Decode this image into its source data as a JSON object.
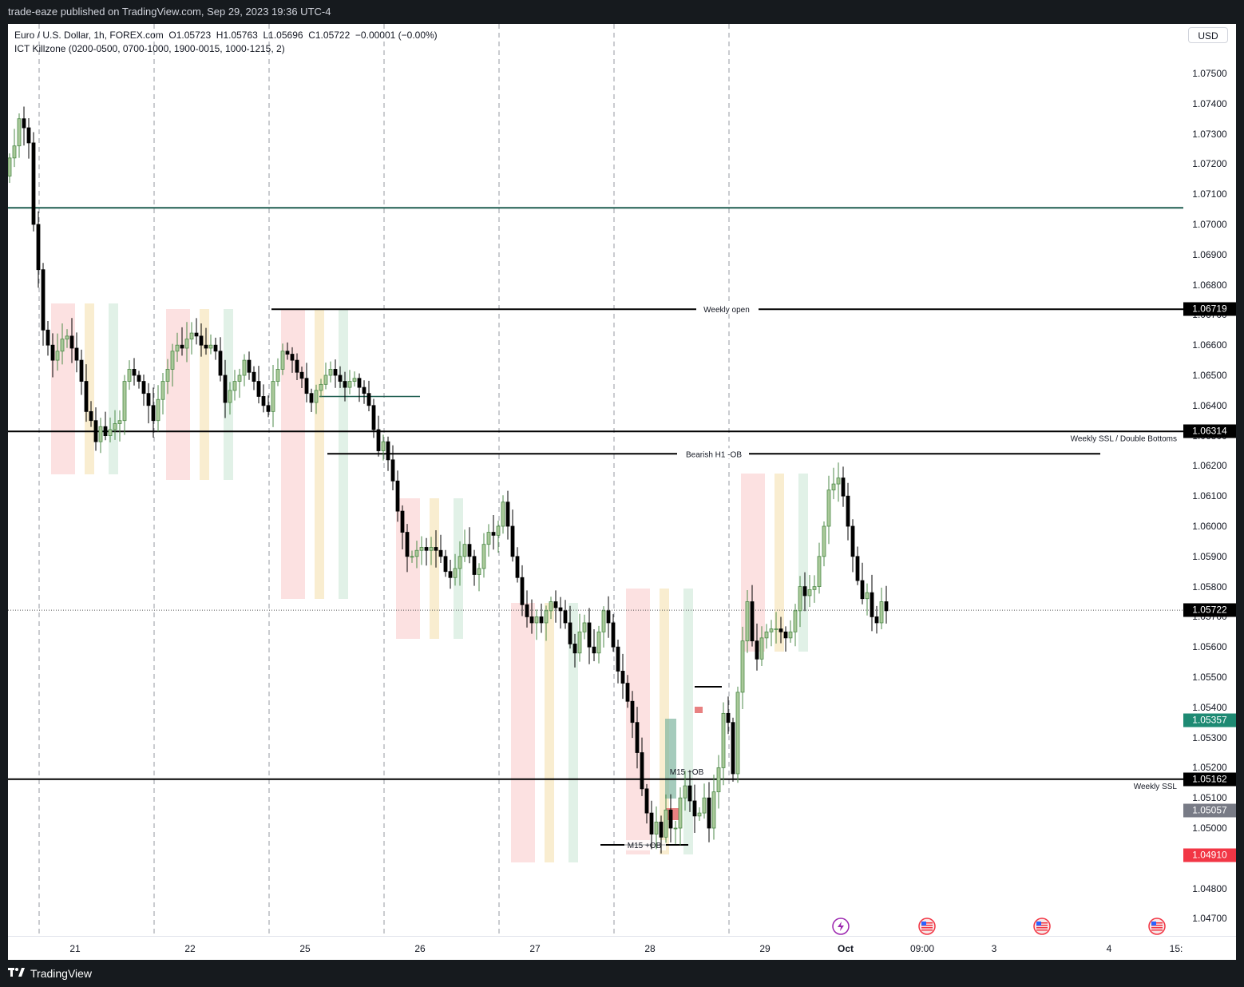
{
  "header": {
    "publisher": "trade-eaze published on TradingView.com, Sep 29, 2023 19:36 UTC-4"
  },
  "legend": {
    "symbol": "Euro / U.S. Dollar, 1h, FOREX.com",
    "ohlc": "O1.05723  H1.05763  L1.05696  C1.05722  −0.00001 (−0.00%)",
    "indicator": "ICT Killzone (0200-0500, 0700-1000, 1900-0015, 1000-1215, 2)"
  },
  "price_axis": {
    "currency": "USD",
    "ticks": [
      "1.07500",
      "1.07400",
      "1.07300",
      "1.07200",
      "1.07100",
      "1.07000",
      "1.06900",
      "1.06800",
      "1.06700",
      "1.06600",
      "1.06500",
      "1.06400",
      "1.06300",
      "1.06200",
      "1.06100",
      "1.06000",
      "1.05900",
      "1.05800",
      "1.05700",
      "1.05600",
      "1.05500",
      "1.05400",
      "1.05300",
      "1.05200",
      "1.05100",
      "1.05000",
      "1.04900",
      "1.04800",
      "1.04700"
    ],
    "labels": [
      {
        "text": "1.06719",
        "bg": "#000000",
        "fg": "#ffffff"
      },
      {
        "text": "1.06314",
        "bg": "#000000",
        "fg": "#ffffff"
      },
      {
        "text": "1.05722",
        "bg": "#000000",
        "fg": "#ffffff"
      },
      {
        "text": "1.05357",
        "bg": "#1e8a73",
        "fg": "#ffffff"
      },
      {
        "text": "1.05162",
        "bg": "#000000",
        "fg": "#ffffff"
      },
      {
        "text": "1.05057",
        "bg": "#787b86",
        "fg": "#ffffff"
      },
      {
        "text": "1.04910",
        "bg": "#f23645",
        "fg": "#ffffff"
      }
    ]
  },
  "time_axis": {
    "labels": [
      {
        "text": "21",
        "bold": false
      },
      {
        "text": "22",
        "bold": false
      },
      {
        "text": "25",
        "bold": false
      },
      {
        "text": "26",
        "bold": false
      },
      {
        "text": "27",
        "bold": false
      },
      {
        "text": "28",
        "bold": false
      },
      {
        "text": "29",
        "bold": false
      },
      {
        "text": "Oct",
        "bold": true
      },
      {
        "text": "09:00",
        "bold": false
      },
      {
        "text": "3",
        "bold": false
      },
      {
        "text": "4",
        "bold": false
      },
      {
        "text": "15:",
        "bold": false
      }
    ]
  },
  "annotations": {
    "weekly_open": "Weekly open",
    "weekly_ssl_double": "Weekly SSL / Double Bottoms",
    "bearish_ob": "Bearish H1 -OB",
    "m15_ob_top": "M15 +OB",
    "weekly_ssl": "Weekly SSL",
    "m15_ob_bottom": "M15 +OB"
  },
  "colors": {
    "up": "#4d8a48",
    "down": "#000000",
    "upfill": "#aac99a",
    "killzone_asia": "#f9c8c8",
    "killzone_london": "#f4deaa",
    "killzone_ny": "#c9e6d4",
    "teal_line": "#1e5e50"
  },
  "footer": {
    "brand": "TradingView"
  },
  "chart_data": {
    "type": "candlestick",
    "symbol": "EURUSD",
    "timeframe": "1h",
    "ylim": [
      1.0462,
      1.0768
    ],
    "levels": [
      {
        "name": "Weekly open",
        "value": 1.06719
      },
      {
        "name": "Weekly SSL / Double Bottoms",
        "value": 1.06314
      },
      {
        "name": "Bearish H1 -OB",
        "value": 1.0624
      },
      {
        "name": "Weekly SSL",
        "value": 1.05162
      },
      {
        "value": 1.07055
      },
      {
        "value": 1.0643
      }
    ],
    "close": [
      1.0722,
      1.0726,
      1.0735,
      1.0732,
      1.0727,
      1.07,
      1.0685,
      1.0665,
      1.066,
      1.0655,
      1.0658,
      1.0662,
      1.0663,
      1.0659,
      1.0655,
      1.0648,
      1.0638,
      1.0635,
      1.0628,
      1.0633,
      1.063,
      1.0632,
      1.0634,
      1.0635,
      1.0648,
      1.0652,
      1.065,
      1.0648,
      1.0644,
      1.064,
      1.0635,
      1.0642,
      1.0648,
      1.0652,
      1.0658,
      1.066,
      1.0659,
      1.0662,
      1.0664,
      1.0663,
      1.066,
      1.0659,
      1.066,
      1.0658,
      1.065,
      1.0641,
      1.0645,
      1.0648,
      1.065,
      1.0655,
      1.0651,
      1.0648,
      1.0643,
      1.064,
      1.0638,
      1.0648,
      1.0652,
      1.0658,
      1.0657,
      1.0655,
      1.0651,
      1.0649,
      1.0644,
      1.0641,
      1.0645,
      1.0647,
      1.065,
      1.0652,
      1.065,
      1.0648,
      1.0646,
      1.0648,
      1.0649,
      1.0646,
      1.0644,
      1.064,
      1.0632,
      1.0625,
      1.0628,
      1.0622,
      1.0615,
      1.0605,
      1.0598,
      1.059,
      1.059,
      1.0592,
      1.0593,
      1.0592,
      1.0593,
      1.0592,
      1.059,
      1.0585,
      1.0583,
      1.0586,
      1.059,
      1.0594,
      1.059,
      1.0584,
      1.0586,
      1.0594,
      1.0598,
      1.0597,
      1.06,
      1.0608,
      1.06,
      1.059,
      1.0583,
      1.0574,
      1.057,
      1.0568,
      1.057,
      1.0568,
      1.0572,
      1.0575,
      1.0573,
      1.0572,
      1.0568,
      1.0561,
      1.0558,
      1.0565,
      1.0568,
      1.056,
      1.0558,
      1.0565,
      1.0572,
      1.0568,
      1.056,
      1.0552,
      1.0548,
      1.0542,
      1.0535,
      1.0525,
      1.0513,
      1.0505,
      1.0498,
      1.0502,
      1.0497,
      1.0506,
      1.05,
      1.05,
      1.051,
      1.0514,
      1.0509,
      1.0504,
      1.0505,
      1.051,
      1.05,
      1.0512,
      1.052,
      1.0538,
      1.0535,
      1.0518,
      1.0545,
      1.0562,
      1.0575,
      1.0562,
      1.0556,
      1.0563,
      1.0565,
      1.0566,
      1.0566,
      1.0565,
      1.0563,
      1.0565,
      1.0572,
      1.058,
      1.0577,
      1.0579,
      1.058,
      1.059,
      1.06,
      1.0612,
      1.0614,
      1.0616,
      1.061,
      1.06,
      1.059,
      1.0582,
      1.0576,
      1.0578,
      1.057,
      1.0568,
      1.0575,
      1.0572
    ]
  }
}
